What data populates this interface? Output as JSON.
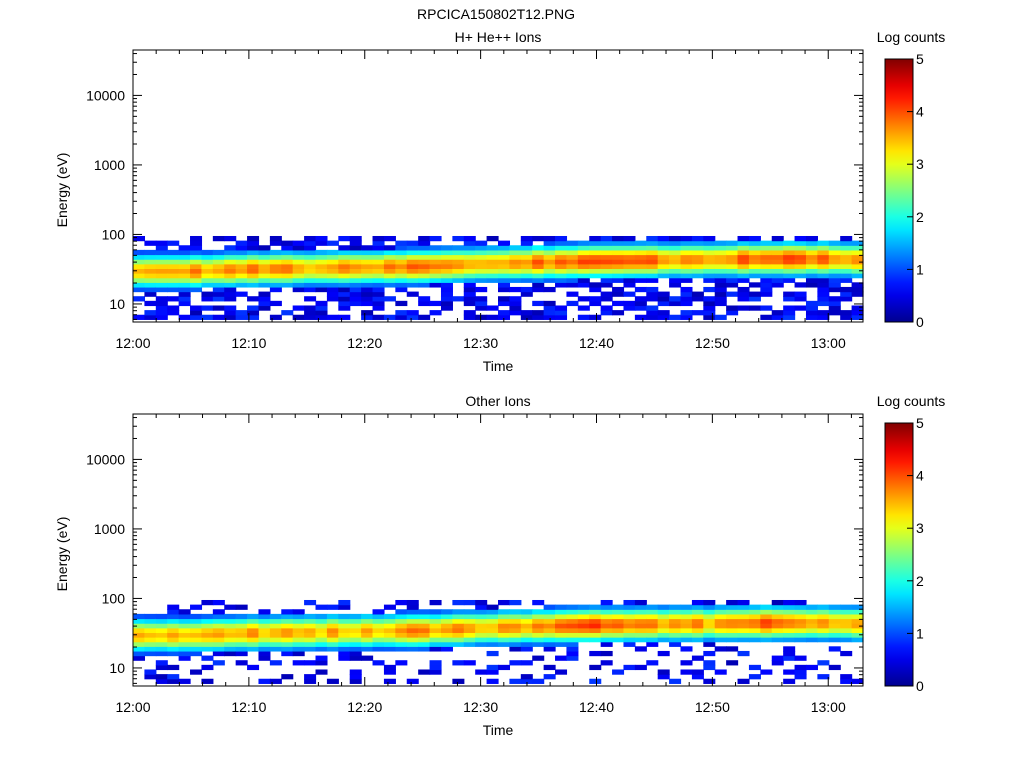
{
  "figure_title": "RPCICA150802T12.PNG",
  "colors": {
    "colormap": [
      "#00008f",
      "#0000ff",
      "#00ffff",
      "#ffff00",
      "#ff0000",
      "#800000"
    ],
    "background": "#ffffff",
    "axes": "#000000"
  },
  "chart_data": [
    {
      "type": "heatmap",
      "title": "H+ He++ Ions",
      "xlabel": "Time",
      "ylabel": "Energy (eV)",
      "y_scale": "log",
      "xlim": [
        "12:00",
        "13:03"
      ],
      "ylim": [
        5.5,
        45000
      ],
      "x_ticks": [
        "12:00",
        "12:10",
        "12:20",
        "12:30",
        "12:40",
        "12:50",
        "13:00"
      ],
      "y_ticks": [
        10,
        100,
        1000,
        10000
      ],
      "y_tick_labels": [
        "10",
        "100",
        "1000",
        "10000"
      ],
      "colorbar": {
        "label": "Log counts",
        "range": [
          0,
          5
        ],
        "ticks": [
          "0",
          "1",
          "2",
          "3",
          "4",
          "5"
        ]
      },
      "energy_range_eV": [
        6,
        95
      ],
      "peak_energy_eV": [
        30,
        30,
        32,
        33,
        34,
        35,
        38,
        40,
        42,
        43,
        44,
        45,
        45,
        44,
        43
      ],
      "peak_times": [
        "12:00",
        "12:05",
        "12:10",
        "12:15",
        "12:20",
        "12:25",
        "12:30",
        "12:35",
        "12:40",
        "12:45",
        "12:50",
        "12:55",
        "13:00",
        "13:02",
        "13:03"
      ],
      "peak_log_counts": [
        3.4,
        3.6,
        3.7,
        3.6,
        3.6,
        3.8,
        3.7,
        3.8,
        4.1,
        3.8,
        3.7,
        4.0,
        3.8,
        3.7,
        3.7
      ]
    },
    {
      "type": "heatmap",
      "title": "Other Ions",
      "xlabel": "Time",
      "ylabel": "Energy (eV)",
      "y_scale": "log",
      "xlim": [
        "12:00",
        "13:03"
      ],
      "ylim": [
        5.5,
        45000
      ],
      "x_ticks": [
        "12:00",
        "12:10",
        "12:20",
        "12:30",
        "12:40",
        "12:50",
        "13:00"
      ],
      "y_ticks": [
        10,
        100,
        1000,
        10000
      ],
      "y_tick_labels": [
        "10",
        "100",
        "1000",
        "10000"
      ],
      "colorbar": {
        "label": "Log counts",
        "range": [
          0,
          5
        ],
        "ticks": [
          "0",
          "1",
          "2",
          "3",
          "4",
          "5"
        ]
      },
      "energy_range_eV": [
        6,
        95
      ],
      "peak_energy_eV": [
        30,
        30,
        32,
        33,
        34,
        35,
        38,
        40,
        42,
        43,
        44,
        45,
        45,
        44,
        43
      ],
      "peak_times": [
        "12:00",
        "12:05",
        "12:10",
        "12:15",
        "12:20",
        "12:25",
        "12:30",
        "12:35",
        "12:40",
        "12:45",
        "12:50",
        "12:55",
        "13:00",
        "13:02",
        "13:03"
      ],
      "peak_log_counts": [
        3.3,
        3.5,
        3.6,
        3.5,
        3.5,
        3.7,
        3.6,
        3.7,
        4.0,
        3.7,
        3.6,
        3.9,
        3.7,
        3.6,
        3.6
      ]
    }
  ]
}
